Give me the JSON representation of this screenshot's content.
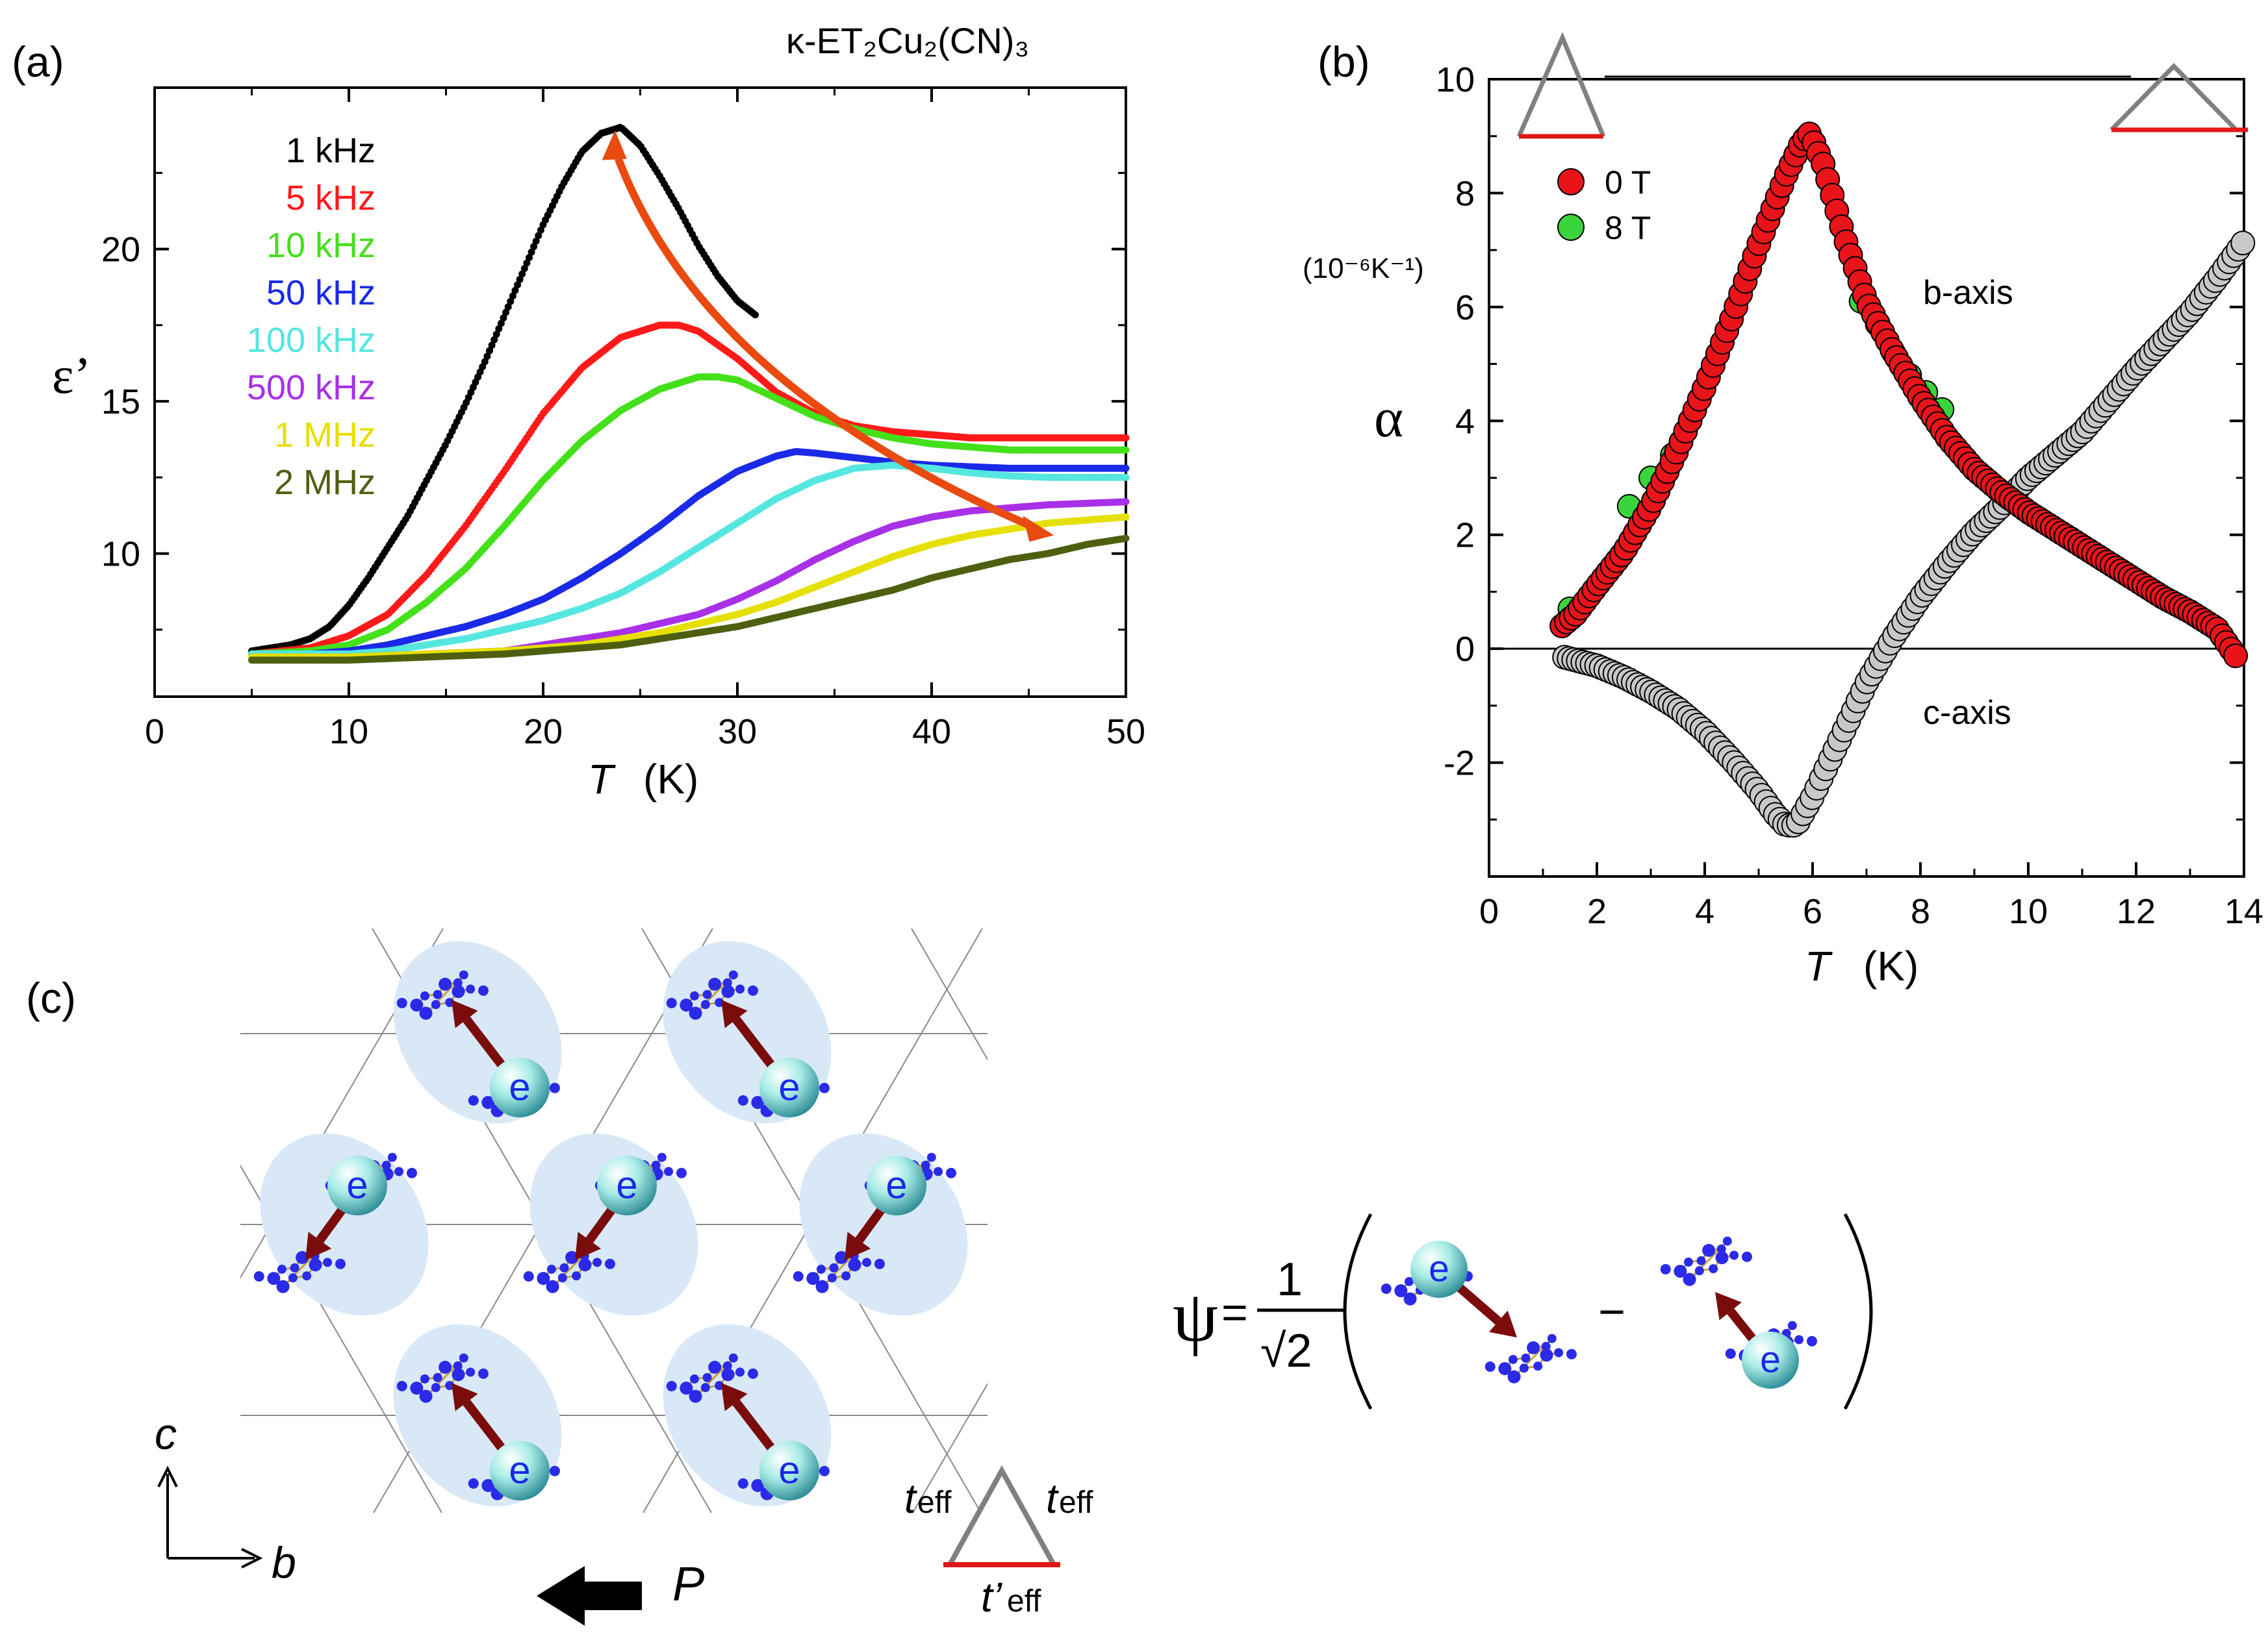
{
  "panels": {
    "a": {
      "label": "(a)"
    },
    "b": {
      "label": "(b)"
    },
    "c": {
      "label": "(c)"
    }
  },
  "colors": {
    "1 kHz": "#000000",
    "5 kHz": "#ff1a1a",
    "10 kHz": "#44e01a",
    "50 kHz": "#1a2ae6",
    "100 kHz": "#55e6e0",
    "500 kHz": "#a830e8",
    "1 MHz": "#e6e000",
    "2 MHz": "#4e6010",
    "zero_field": "#e8141a",
    "eight_tesla": "#3cd43c",
    "c_axis": "#c8c8c8",
    "arrow_orange": "#e84a10",
    "dimer_arrow": "#7a0c0c",
    "electron": "#9ee8e0",
    "molecule_blue": "#2a2ae8",
    "bond_gold": "#c8a040",
    "shade": "#d8e8f6",
    "triangle_gray": "#808080",
    "triangle_base": "#e01818"
  },
  "chart_data": [
    {
      "id": "a",
      "type": "scatter",
      "title": "κ-ET₂Cu₂(CN)₃",
      "xlabel_italic": "T",
      "xlabel_unit": "(K)",
      "ylabel": "ε’",
      "xlim": [
        0,
        50
      ],
      "ylim": [
        5.3,
        25.3
      ],
      "xticks": [
        0,
        10,
        20,
        30,
        40,
        50
      ],
      "yticks": [
        10,
        15,
        20
      ],
      "legend": [
        "1 kHz",
        "5 kHz",
        "10 kHz",
        "50 kHz",
        "100 kHz",
        "500 kHz",
        "1 MHz",
        "2 MHz"
      ],
      "series": [
        {
          "name": "1 kHz",
          "x": [
            5,
            6,
            7,
            8,
            9,
            10,
            11,
            12,
            13,
            14,
            15,
            16,
            17,
            18,
            19,
            20,
            21,
            22,
            23,
            24,
            25,
            26,
            27,
            28,
            29,
            30,
            31
          ],
          "y": [
            6.8,
            6.9,
            7.0,
            7.2,
            7.6,
            8.3,
            9.2,
            10.2,
            11.2,
            12.4,
            13.6,
            14.9,
            16.3,
            17.8,
            19.3,
            20.8,
            22.1,
            23.2,
            23.8,
            24.0,
            23.4,
            22.4,
            21.3,
            20.1,
            19.1,
            18.3,
            17.8
          ]
        },
        {
          "name": "5 kHz",
          "x": [
            5,
            8,
            10,
            12,
            14,
            16,
            18,
            20,
            22,
            24,
            26,
            27,
            28,
            30,
            32,
            34,
            36,
            38,
            40,
            42,
            44,
            46,
            48,
            50
          ],
          "y": [
            6.7,
            6.9,
            7.3,
            8.0,
            9.3,
            10.9,
            12.7,
            14.6,
            16.1,
            17.1,
            17.5,
            17.5,
            17.3,
            16.4,
            15.3,
            14.6,
            14.2,
            14.0,
            13.9,
            13.8,
            13.8,
            13.8,
            13.8,
            13.8
          ]
        },
        {
          "name": "10 kHz",
          "x": [
            5,
            8,
            10,
            12,
            14,
            16,
            18,
            20,
            22,
            24,
            26,
            28,
            29,
            30,
            32,
            34,
            36,
            38,
            40,
            42,
            44,
            46,
            48,
            50
          ],
          "y": [
            6.7,
            6.8,
            7.0,
            7.5,
            8.4,
            9.5,
            10.9,
            12.4,
            13.7,
            14.7,
            15.4,
            15.8,
            15.8,
            15.7,
            15.1,
            14.5,
            14.1,
            13.8,
            13.6,
            13.5,
            13.4,
            13.4,
            13.4,
            13.4
          ]
        },
        {
          "name": "50 kHz",
          "x": [
            5,
            8,
            10,
            12,
            14,
            16,
            18,
            20,
            22,
            24,
            26,
            28,
            30,
            32,
            33,
            34,
            36,
            38,
            40,
            42,
            44,
            46,
            48,
            50
          ],
          "y": [
            6.7,
            6.7,
            6.8,
            7.0,
            7.3,
            7.6,
            8.0,
            8.5,
            9.2,
            10.0,
            10.9,
            11.9,
            12.7,
            13.2,
            13.35,
            13.3,
            13.15,
            13.0,
            12.9,
            12.85,
            12.8,
            12.8,
            12.8,
            12.8
          ]
        },
        {
          "name": "100 kHz",
          "x": [
            5,
            8,
            10,
            12,
            14,
            16,
            18,
            20,
            22,
            24,
            26,
            28,
            30,
            32,
            34,
            36,
            38,
            40,
            42,
            44,
            46,
            48,
            50
          ],
          "y": [
            6.7,
            6.7,
            6.7,
            6.8,
            7.0,
            7.2,
            7.5,
            7.8,
            8.2,
            8.7,
            9.4,
            10.2,
            11.0,
            11.8,
            12.4,
            12.8,
            12.9,
            12.8,
            12.65,
            12.55,
            12.5,
            12.5,
            12.5
          ]
        },
        {
          "name": "500 kHz",
          "x": [
            5,
            8,
            10,
            14,
            18,
            20,
            22,
            24,
            26,
            28,
            30,
            32,
            34,
            36,
            38,
            40,
            42,
            44,
            46,
            48,
            50
          ],
          "y": [
            6.6,
            6.6,
            6.6,
            6.7,
            6.8,
            7.0,
            7.2,
            7.4,
            7.7,
            8.0,
            8.5,
            9.1,
            9.8,
            10.4,
            10.9,
            11.2,
            11.4,
            11.5,
            11.6,
            11.65,
            11.7
          ]
        },
        {
          "name": "1 MHz",
          "x": [
            5,
            8,
            10,
            14,
            18,
            20,
            22,
            24,
            26,
            28,
            30,
            32,
            34,
            36,
            38,
            40,
            42,
            44,
            46,
            48,
            50
          ],
          "y": [
            6.6,
            6.6,
            6.6,
            6.7,
            6.8,
            6.9,
            7.0,
            7.2,
            7.4,
            7.7,
            8.0,
            8.4,
            8.9,
            9.4,
            9.9,
            10.3,
            10.6,
            10.8,
            11.0,
            11.1,
            11.2
          ]
        },
        {
          "name": "2 MHz",
          "x": [
            5,
            8,
            10,
            14,
            18,
            22,
            24,
            26,
            28,
            30,
            32,
            34,
            36,
            38,
            40,
            42,
            44,
            46,
            48,
            50
          ],
          "y": [
            6.5,
            6.5,
            6.5,
            6.6,
            6.7,
            6.9,
            7.0,
            7.2,
            7.4,
            7.6,
            7.9,
            8.2,
            8.5,
            8.8,
            9.2,
            9.5,
            9.8,
            10.0,
            10.3,
            10.5
          ]
        }
      ],
      "annotation": {
        "type": "double-arrow",
        "from": [
          23.7,
          23.9
        ],
        "to": [
          46.3,
          10.6
        ]
      }
    },
    {
      "id": "b",
      "type": "scatter",
      "ylabel": "α",
      "yunit": "(10⁻⁶K⁻¹)",
      "xlabel_italic": "T",
      "xlabel_unit": "(K)",
      "xlim": [
        0,
        14
      ],
      "ylim": [
        -4,
        10
      ],
      "xticks": [
        0,
        2,
        4,
        6,
        8,
        10,
        12,
        14
      ],
      "yticks": [
        -2,
        0,
        2,
        4,
        6,
        8,
        10
      ],
      "legend": [
        "0 T",
        "8 T"
      ],
      "annotations": [
        "b-axis",
        "c-axis"
      ],
      "series": [
        {
          "name": "0 T",
          "axis": "b",
          "x": [
            1.35,
            1.6,
            2.0,
            2.5,
            3.0,
            3.5,
            4.0,
            4.5,
            5.0,
            5.5,
            5.8,
            5.95,
            6.2,
            6.6,
            7.0,
            7.5,
            8.0,
            8.5,
            9.0,
            9.5,
            10.0,
            10.5,
            11.0,
            11.5,
            12.0,
            12.5,
            13.0,
            13.5,
            13.9
          ],
          "y": [
            0.4,
            0.6,
            1.1,
            1.7,
            2.5,
            3.5,
            4.6,
            5.8,
            7.1,
            8.3,
            8.9,
            9.05,
            8.5,
            7.2,
            6.1,
            5.2,
            4.4,
            3.7,
            3.15,
            2.75,
            2.4,
            2.1,
            1.8,
            1.5,
            1.2,
            0.9,
            0.65,
            0.35,
            -0.2
          ]
        },
        {
          "name": "8 T",
          "axis": "b",
          "x": [
            1.5,
            2.6,
            3.0,
            3.4,
            6.9,
            7.2,
            7.5,
            7.8,
            8.1,
            8.4
          ],
          "y": [
            0.7,
            2.5,
            3.0,
            3.4,
            6.1,
            5.7,
            5.2,
            4.8,
            4.5,
            4.2
          ]
        },
        {
          "name": "c-axis",
          "axis": "c",
          "x": [
            1.4,
            2.0,
            2.5,
            3.0,
            3.5,
            4.0,
            4.5,
            5.0,
            5.3,
            5.5,
            5.7,
            6.0,
            6.5,
            7.0,
            7.5,
            8.0,
            8.5,
            9.0,
            9.5,
            10.0,
            10.5,
            11.0,
            11.5,
            12.0,
            12.5,
            13.0,
            13.5,
            14.0
          ],
          "y": [
            -0.15,
            -0.3,
            -0.5,
            -0.75,
            -1.05,
            -1.45,
            -1.95,
            -2.5,
            -2.9,
            -3.1,
            -3.1,
            -2.6,
            -1.6,
            -0.6,
            0.2,
            0.9,
            1.5,
            2.05,
            2.5,
            3.0,
            3.4,
            3.8,
            4.35,
            4.9,
            5.4,
            5.9,
            6.5,
            7.15
          ]
        }
      ]
    }
  ],
  "diagram_c": {
    "electron_label": "e",
    "axis_c": "c",
    "axis_b": "b",
    "polarization": "P",
    "t_eff_left": "t",
    "t_eff_right": "t",
    "t_prime": "t’",
    "eff_sub": "eff",
    "psi": "ψ",
    "eq": "=",
    "one": "1",
    "sqrt2": "√2",
    "minus": "−"
  }
}
